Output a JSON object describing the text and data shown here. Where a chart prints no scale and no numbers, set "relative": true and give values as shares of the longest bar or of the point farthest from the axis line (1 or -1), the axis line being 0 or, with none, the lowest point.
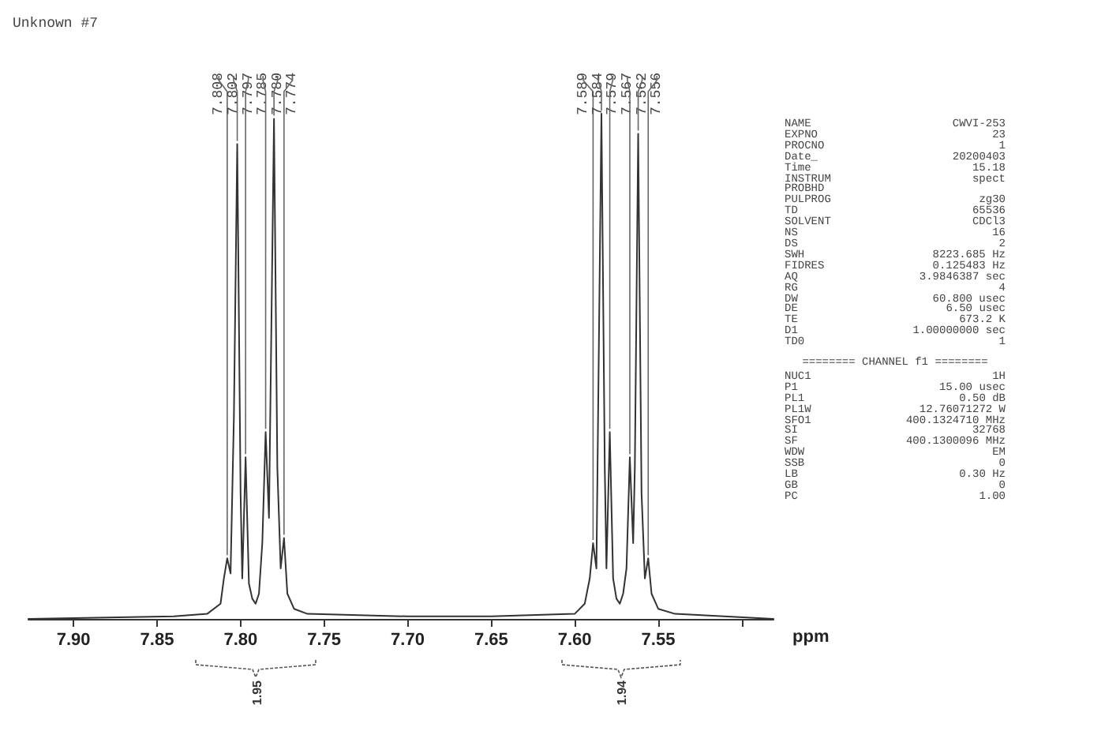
{
  "chart_data": {
    "type": "line",
    "title": "Unknown #7",
    "xlabel": "ppm",
    "relative": true,
    "marker": "none",
    "line_style": "solid",
    "xlim": [
      7.927,
      7.481
    ],
    "xticks": [
      {
        "value": 7.9,
        "label": "7.90"
      },
      {
        "value": 7.85,
        "label": "7.85"
      },
      {
        "value": 7.8,
        "label": "7.80"
      },
      {
        "value": 7.75,
        "label": "7.75"
      },
      {
        "value": 7.7,
        "label": "7.70"
      },
      {
        "value": 7.65,
        "label": "7.65"
      },
      {
        "value": 7.6,
        "label": "7.60"
      },
      {
        "value": 7.55,
        "label": "7.55"
      },
      {
        "value": 7.5,
        "label": null
      }
    ],
    "series": [
      {
        "color": "#333333",
        "x": [
          7.927,
          7.84,
          7.82,
          7.812,
          7.81,
          7.808,
          7.806,
          7.804,
          7.802,
          7.8,
          7.799,
          7.797,
          7.795,
          7.793,
          7.791,
          7.789,
          7.787,
          7.785,
          7.783,
          7.78,
          7.778,
          7.776,
          7.774,
          7.772,
          7.768,
          7.76,
          7.7,
          7.65,
          7.6,
          7.594,
          7.591,
          7.589,
          7.587,
          7.586,
          7.584,
          7.582,
          7.581,
          7.579,
          7.577,
          7.575,
          7.573,
          7.571,
          7.569,
          7.567,
          7.565,
          7.564,
          7.562,
          7.56,
          7.558,
          7.556,
          7.554,
          7.55,
          7.54,
          7.481
        ],
        "values": [
          0,
          0.005,
          0.01,
          0.03,
          0.08,
          0.12,
          0.09,
          0.4,
          0.94,
          0.25,
          0.08,
          0.32,
          0.07,
          0.04,
          0.03,
          0.05,
          0.15,
          0.37,
          0.2,
          0.99,
          0.3,
          0.1,
          0.16,
          0.05,
          0.02,
          0.01,
          0.005,
          0.005,
          0.01,
          0.03,
          0.08,
          0.15,
          0.1,
          0.4,
          1,
          0.3,
          0.1,
          0.37,
          0.08,
          0.04,
          0.03,
          0.05,
          0.1,
          0.32,
          0.15,
          0.3,
          0.96,
          0.25,
          0.08,
          0.12,
          0.05,
          0.02,
          0.01,
          0
        ]
      }
    ],
    "annotations": [
      {
        "text": "7.808",
        "x": 7.808,
        "y": 0.12
      },
      {
        "text": "7.802",
        "x": 7.802,
        "y": 0.94
      },
      {
        "text": "7.797",
        "x": 7.797,
        "y": 0.32
      },
      {
        "text": "7.785",
        "x": 7.785,
        "y": 0.37
      },
      {
        "text": "7.780",
        "x": 7.78,
        "y": 0.99
      },
      {
        "text": "7.774",
        "x": 7.774,
        "y": 0.16
      },
      {
        "text": "7.589",
        "x": 7.589,
        "y": 0.15
      },
      {
        "text": "7.584",
        "x": 7.584,
        "y": 1
      },
      {
        "text": "7.579",
        "x": 7.579,
        "y": 0.37
      },
      {
        "text": "7.567",
        "x": 7.567,
        "y": 0.32
      },
      {
        "text": "7.562",
        "x": 7.562,
        "y": 0.96
      },
      {
        "text": "7.556",
        "x": 7.556,
        "y": 0.12
      },
      "1.95",
      "1.94",
      "NAME CWVI-253",
      "EXPNO 23",
      "PROCNO 1",
      "Date_ 20200403",
      "Time 15.18",
      "INSTRUM spect",
      "PROBHD",
      "PULPROG zg30",
      "TD 65536",
      "SOLVENT CDCl3",
      "NS 16",
      "DS 2",
      "SWH 8223.685 Hz",
      "FIDRES 0.125483 Hz",
      "AQ 3.9846387 sec",
      "RG 4",
      "DW 60.800 usec",
      "DE 6.50 usec",
      "TE 673.2 K",
      "D1 1.00000000 sec",
      "TD0 1",
      "======== CHANNEL f1 ========",
      "NUC1 1H",
      "P1 15.00 usec",
      "PL1 0.50 dB",
      "PL1W 12.76071272 W",
      "SFO1 400.1324710 MHz",
      "SI 32768",
      "SF 400.1300096 MHz",
      "WDW EM",
      "SSB 0",
      "LB 0.30 Hz",
      "GB 0",
      "PC 1.00"
    ]
  }
}
